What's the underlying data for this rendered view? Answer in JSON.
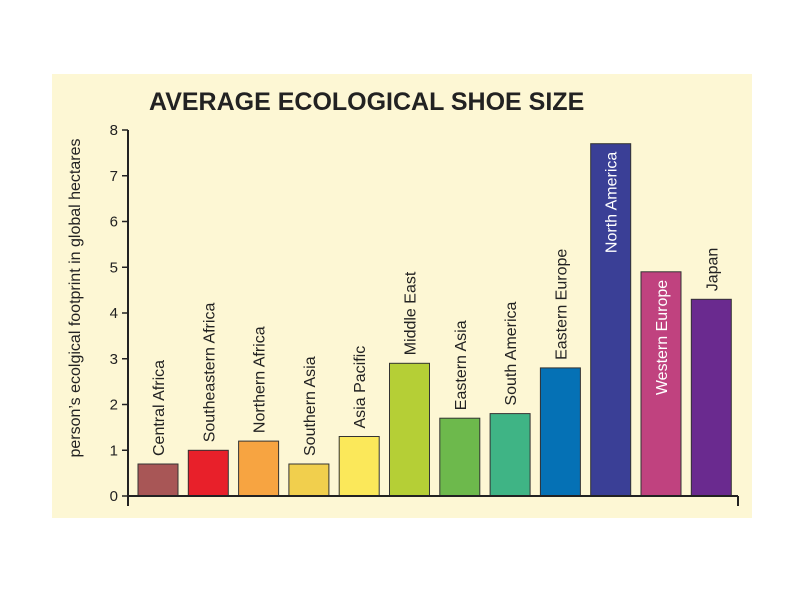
{
  "chart_data": {
    "type": "bar",
    "title": "AVERAGE ECOLOGICAL SHOE SIZE",
    "xlabel": "",
    "ylabel": "person’s ecolgical footprint in global hectares",
    "ylim": [
      0,
      8
    ],
    "yticks": [
      0,
      1,
      2,
      3,
      4,
      5,
      6,
      7,
      8
    ],
    "grid": false,
    "categories": [
      "Central Africa",
      "Southeastern Africa",
      "Northern Africa",
      "Southern Asia",
      "Asia Pacific",
      "Middle East",
      "Eastern Asia",
      "South America",
      "Eastern Europe",
      "North America",
      "Western Europe",
      "Japan"
    ],
    "values": [
      0.7,
      1.0,
      1.2,
      0.7,
      1.3,
      2.9,
      1.7,
      1.8,
      2.8,
      7.7,
      4.9,
      4.3
    ],
    "colors": [
      "#a85656",
      "#e8202a",
      "#f7a441",
      "#f1cf4d",
      "#fbe85a",
      "#b5cf36",
      "#6db94c",
      "#3fb485",
      "#0571b5",
      "#3a3f96",
      "#c0427f",
      "#6a2a8f"
    ],
    "label_colors": [
      "#222222",
      "#222222",
      "#222222",
      "#222222",
      "#222222",
      "#222222",
      "#222222",
      "#222222",
      "#222222",
      "#ffffff",
      "#ffffff",
      "#222222"
    ],
    "label_inside": [
      false,
      false,
      false,
      false,
      false,
      false,
      false,
      false,
      false,
      true,
      true,
      false
    ]
  }
}
